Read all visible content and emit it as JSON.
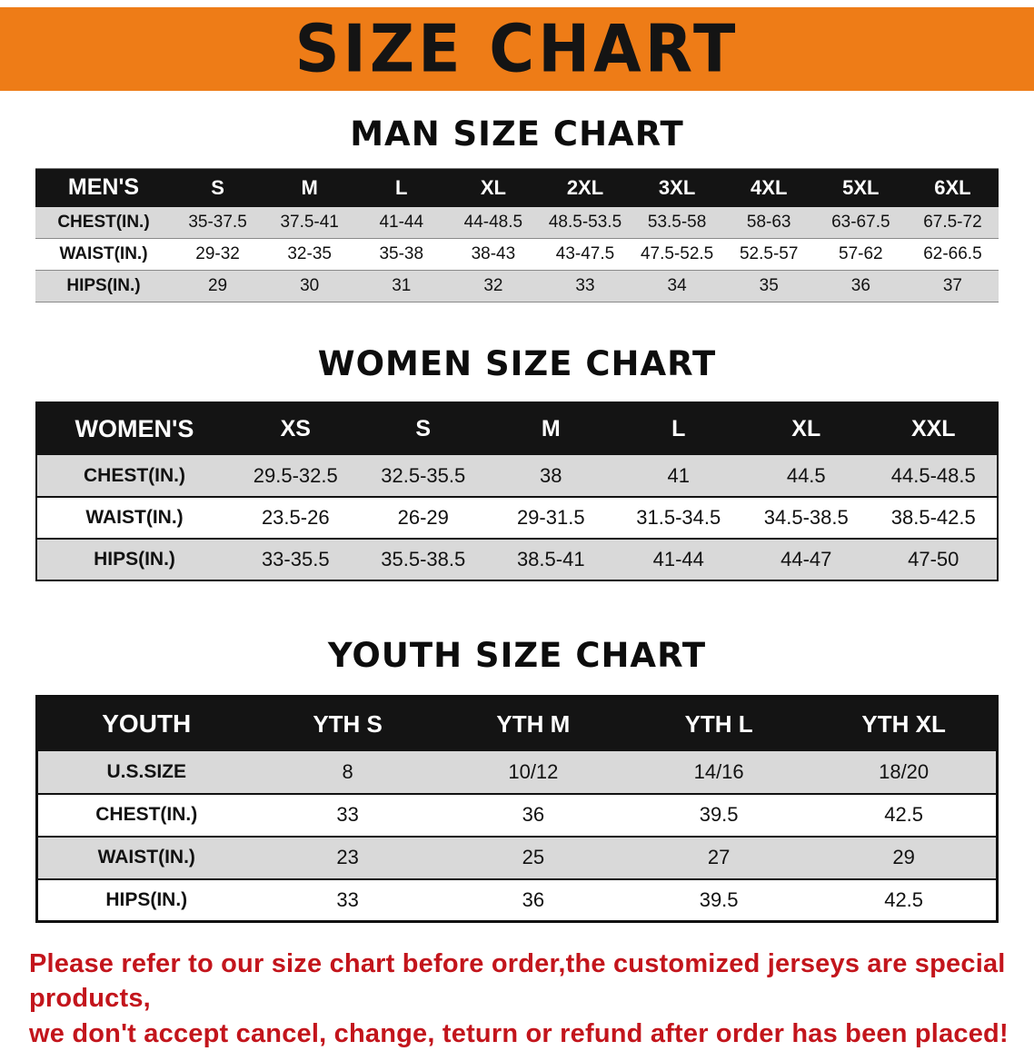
{
  "banner": {
    "title": "SIZE CHART",
    "background_color": "#ee7c17",
    "text_color": "#141414"
  },
  "tables": [
    {
      "id": "men",
      "section_title": "MAN SIZE CHART",
      "header": [
        "MEN'S",
        "S",
        "M",
        "L",
        "XL",
        "2XL",
        "3XL",
        "4XL",
        "5XL",
        "6XL"
      ],
      "rows": [
        [
          "CHEST(IN.)",
          "35-37.5",
          "37.5-41",
          "41-44",
          "44-48.5",
          "48.5-53.5",
          "53.5-58",
          "58-63",
          "63-67.5",
          "67.5-72"
        ],
        [
          "WAIST(IN.)",
          "29-32",
          "32-35",
          "35-38",
          "38-43",
          "43-47.5",
          "47.5-52.5",
          "52.5-57",
          "57-62",
          "62-66.5"
        ],
        [
          "HIPS(IN.)",
          "29",
          "30",
          "31",
          "32",
          "33",
          "34",
          "35",
          "36",
          "37"
        ]
      ]
    },
    {
      "id": "women",
      "section_title": "WOMEN SIZE CHART",
      "header": [
        "WOMEN'S",
        "XS",
        "S",
        "M",
        "L",
        "XL",
        "XXL"
      ],
      "rows": [
        [
          "CHEST(IN.)",
          "29.5-32.5",
          "32.5-35.5",
          "38",
          "41",
          "44.5",
          "44.5-48.5"
        ],
        [
          "WAIST(IN.)",
          "23.5-26",
          "26-29",
          "29-31.5",
          "31.5-34.5",
          "34.5-38.5",
          "38.5-42.5"
        ],
        [
          "HIPS(IN.)",
          "33-35.5",
          "35.5-38.5",
          "38.5-41",
          "41-44",
          "44-47",
          "47-50"
        ]
      ]
    },
    {
      "id": "youth",
      "section_title": "YOUTH SIZE CHART",
      "header": [
        "YOUTH",
        "YTH S",
        "YTH M",
        "YTH L",
        "YTH XL"
      ],
      "rows": [
        [
          "U.S.SIZE",
          "8",
          "10/12",
          "14/16",
          "18/20"
        ],
        [
          "CHEST(IN.)",
          "33",
          "36",
          "39.5",
          "42.5"
        ],
        [
          "WAIST(IN.)",
          "23",
          "25",
          "27",
          "29"
        ],
        [
          "HIPS(IN.)",
          "33",
          "36",
          "39.5",
          "42.5"
        ]
      ]
    }
  ],
  "disclaimer": {
    "line1": "Please refer to our size chart before order,the customized jerseys are special products,",
    "line2": "we don't accept cancel, change, teturn or refund after order has been placed!",
    "text_color": "#c3151c"
  },
  "colors": {
    "header_row_background": "#141414",
    "header_row_text": "#ffffff",
    "striped_row_background": "#d9d9d9"
  }
}
